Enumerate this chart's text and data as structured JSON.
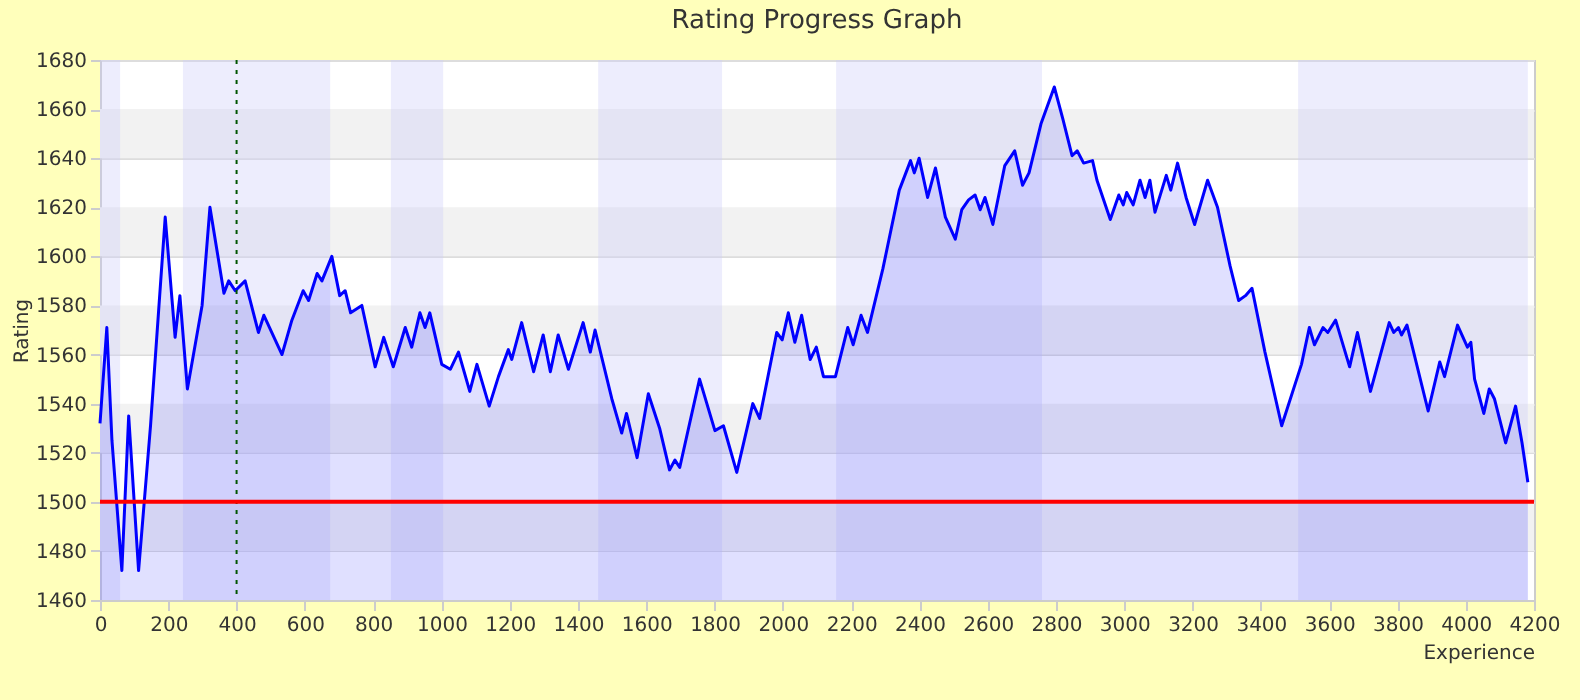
{
  "chart_data": {
    "type": "area",
    "title": "Rating Progress Graph",
    "xlabel": "Experience",
    "ylabel": "Rating",
    "xlim": [
      0,
      4200
    ],
    "xticks": [
      0,
      200,
      400,
      600,
      800,
      1000,
      1200,
      1400,
      1600,
      1800,
      2000,
      2200,
      2400,
      2600,
      2800,
      3000,
      3200,
      3400,
      3600,
      3800,
      4000,
      4200
    ],
    "ylim": [
      1460,
      1680
    ],
    "yticks": [
      1460,
      1480,
      1500,
      1520,
      1540,
      1560,
      1580,
      1600,
      1620,
      1640,
      1660,
      1680
    ],
    "grid": "y",
    "series": [
      {
        "color": "#0000ff",
        "x": [
          0,
          20,
          35,
          64,
          84,
          113,
          148,
          191,
          220,
          234,
          256,
          299,
          322,
          363,
          377,
          396,
          425,
          464,
          480,
          533,
          562,
          595,
          611,
          636,
          650,
          679,
          702,
          718,
          734,
          767,
          806,
          831,
          859,
          894,
          913,
          937,
          952,
          966,
          1001,
          1026,
          1050,
          1083,
          1104,
          1140,
          1167,
          1196,
          1206,
          1235,
          1270,
          1298,
          1319,
          1342,
          1372,
          1415,
          1436,
          1450,
          1499,
          1528,
          1542,
          1573,
          1606,
          1639,
          1668,
          1684,
          1698,
          1756,
          1801,
          1826,
          1865,
          1912,
          1932,
          1982,
          1998,
          2016,
          2035,
          2055,
          2080,
          2098,
          2119,
          2154,
          2190,
          2206,
          2229,
          2248,
          2293,
          2341,
          2374,
          2385,
          2399,
          2424,
          2447,
          2476,
          2505,
          2524,
          2544,
          2563,
          2578,
          2592,
          2615,
          2650,
          2679,
          2702,
          2721,
          2756,
          2795,
          2820,
          2847,
          2862,
          2881,
          2907,
          2920,
          2959,
          2984,
          2997,
          3007,
          3026,
          3046,
          3061,
          3075,
          3090,
          3123,
          3136,
          3156,
          3181,
          3206,
          3244,
          3273,
          3310,
          3335,
          3355,
          3374,
          3412,
          3461,
          3519,
          3542,
          3557,
          3582,
          3596,
          3619,
          3660,
          3683,
          3721,
          3776,
          3789,
          3803,
          3812,
          3828,
          3890,
          3924,
          3938,
          3976,
          4005,
          4015,
          4026,
          4053,
          4069,
          4084,
          4117,
          4146,
          4165,
          4182
        ],
        "values": [
          1532,
          1571,
          1525,
          1472,
          1535,
          1472,
          1531,
          1616,
          1567,
          1584,
          1546,
          1580,
          1620,
          1585,
          1590,
          1586,
          1590,
          1569,
          1576,
          1560,
          1574,
          1586,
          1582,
          1593,
          1590,
          1600,
          1584,
          1586,
          1577,
          1580,
          1555,
          1567,
          1555,
          1571,
          1563,
          1577,
          1571,
          1577,
          1556,
          1554,
          1561,
          1545,
          1556,
          1539,
          1551,
          1562,
          1558,
          1573,
          1553,
          1568,
          1553,
          1568,
          1554,
          1573,
          1561,
          1570,
          1542,
          1528,
          1536,
          1518,
          1544,
          1530,
          1513,
          1517,
          1514,
          1550,
          1529,
          1531,
          1512,
          1540,
          1534,
          1569,
          1566,
          1577,
          1565,
          1576,
          1558,
          1563,
          1551,
          1551,
          1571,
          1564,
          1576,
          1569,
          1595,
          1627,
          1639,
          1634,
          1640,
          1624,
          1636,
          1616,
          1607,
          1619,
          1623,
          1625,
          1619,
          1624,
          1613,
          1637,
          1643,
          1629,
          1634,
          1654,
          1669,
          1656,
          1641,
          1643,
          1638,
          1639,
          1631,
          1615,
          1625,
          1621,
          1626,
          1621,
          1631,
          1624,
          1631,
          1618,
          1633,
          1627,
          1638,
          1624,
          1613,
          1631,
          1620,
          1596,
          1582,
          1584,
          1587,
          1561,
          1531,
          1556,
          1571,
          1564,
          1571,
          1569,
          1574,
          1555,
          1569,
          1545,
          1573,
          1569,
          1571,
          1568,
          1572,
          1537,
          1557,
          1551,
          1572,
          1563,
          1565,
          1550,
          1536,
          1546,
          1542,
          1524,
          1539,
          1524,
          1508
        ]
      }
    ],
    "ref_lines": [
      {
        "axis": "x",
        "value": 400,
        "color": "#005500",
        "line_style": "dotted"
      },
      {
        "axis": "y",
        "value": 1500,
        "color": "#ff0000",
        "line_style": "solid"
      }
    ],
    "bands": [
      {
        "axis": "y",
        "from": 1480,
        "to": 1500,
        "color": "#f2f2f2"
      },
      {
        "axis": "y",
        "from": 1520,
        "to": 1540,
        "color": "#f2f2f2"
      },
      {
        "axis": "y",
        "from": 1560,
        "to": 1580,
        "color": "#f2f2f2"
      },
      {
        "axis": "y",
        "from": 1600,
        "to": 1620,
        "color": "#f2f2f2"
      },
      {
        "axis": "y",
        "from": 1640,
        "to": 1660,
        "color": "#f2f2f2"
      },
      {
        "axis": "x",
        "from": 0,
        "to": 59,
        "color": "#ccccf8"
      },
      {
        "axis": "x",
        "from": 243,
        "to": 674,
        "color": "#ccccf8"
      },
      {
        "axis": "x",
        "from": 852,
        "to": 1005,
        "color": "#ccccf8"
      },
      {
        "axis": "x",
        "from": 1459,
        "to": 1822,
        "color": "#ccccf8"
      },
      {
        "axis": "x",
        "from": 2156,
        "to": 2759,
        "color": "#ccccf8"
      },
      {
        "axis": "x",
        "from": 3509,
        "to": 4182,
        "color": "#ccccf8"
      }
    ]
  }
}
